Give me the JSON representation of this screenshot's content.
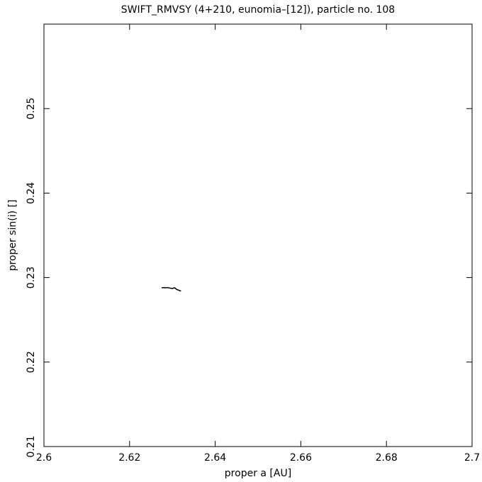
{
  "chart_data": {
    "type": "line",
    "title": "SWIFT_RMVSY (4+210, eunomia–[12]), particle no. 108",
    "x_label": "proper a [AU]",
    "y_label": "proper sin(i) []",
    "x": [
      2.6275,
      2.629,
      2.63,
      2.6305,
      2.631,
      2.632
    ],
    "values": [
      0.2288,
      0.2288,
      0.2287,
      0.2288,
      0.2286,
      0.2284
    ],
    "color": "#000000",
    "xlim": [
      2.6,
      2.7
    ],
    "xticks": [
      2.6,
      2.62,
      2.64,
      2.66,
      2.68,
      2.7
    ],
    "ylim": [
      0.21,
      0.26
    ],
    "yticks": [
      0.21,
      0.22,
      0.23,
      0.24,
      0.25
    ]
  }
}
